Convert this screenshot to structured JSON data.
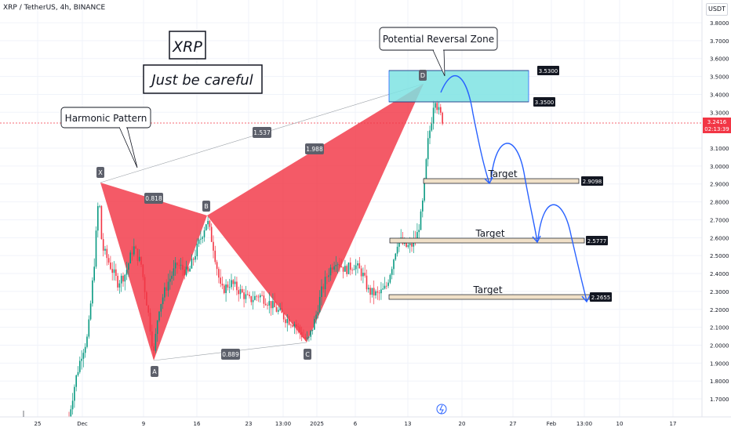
{
  "header": {
    "symbol": "XRP / TetherUS, 4h, BINANCE",
    "currency": "USDT"
  },
  "title_box": {
    "line1": "XRP",
    "line2": "Just be careful"
  },
  "callouts": {
    "harmonic": "Harmonic Pattern",
    "prz": "Potential Reversal Zone"
  },
  "colors": {
    "pattern_fill": "#f23645",
    "zone_fill": "#7ee3e3",
    "arrow": "#2962ff",
    "up_candle": "#089981",
    "down_candle": "#f23645",
    "price_tag": "#f23645"
  },
  "chart_data": {
    "type": "candlestick",
    "title": "XRP / TetherUS, 4h, BINANCE",
    "y_axis": {
      "min": 1.6,
      "max": 3.9,
      "ticks": [
        "3.8000",
        "3.7000",
        "3.6000",
        "3.5000",
        "3.4000",
        "3.3000",
        "3.1000",
        "3.0000",
        "2.9000",
        "2.8000",
        "2.7000",
        "2.6000",
        "2.5000",
        "2.4000",
        "2.3000",
        "2.2000",
        "2.1000",
        "2.0000",
        "1.9000",
        "1.8000",
        "1.7000"
      ]
    },
    "x_axis": {
      "ticks": [
        "25",
        "Dec",
        "9",
        "16",
        "23",
        "13:00",
        "2025",
        "6",
        "13",
        "20",
        "27",
        "Feb",
        "13:00",
        "10",
        "17"
      ]
    },
    "current_price": {
      "value": "3.2416",
      "countdown": "02:13:39"
    },
    "pattern": {
      "points": [
        {
          "label": "X",
          "price": 2.91
        },
        {
          "label": "A",
          "price": 1.91
        },
        {
          "label": "B",
          "price": 2.73
        },
        {
          "label": "C",
          "price": 2.0
        },
        {
          "label": "D",
          "price": 3.46
        }
      ],
      "ratios": [
        {
          "label": "0.818",
          "between": "XA-AB"
        },
        {
          "label": "0.889",
          "between": "AC"
        },
        {
          "label": "1.988",
          "between": "BD"
        },
        {
          "label": "1.537",
          "between": "XD"
        }
      ]
    },
    "zone": {
      "top": "3.5300",
      "bottom": "3.3500"
    },
    "targets": [
      {
        "label": "Target",
        "price": "2.9098"
      },
      {
        "label": "Target",
        "price": "2.5777"
      },
      {
        "label": "Target",
        "price": "2.2655"
      }
    ]
  }
}
